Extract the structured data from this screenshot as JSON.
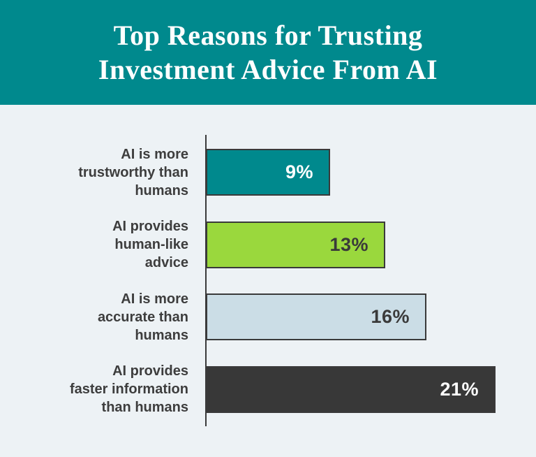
{
  "header": {
    "title_line1": "Top Reasons for Trusting",
    "title_line2": "Investment Advice From AI",
    "bg_color": "#00898D",
    "text_color": "#FFFFFF"
  },
  "chart_data": {
    "type": "bar",
    "orientation": "horizontal",
    "title": "Top Reasons for Trusting Investment Advice From AI",
    "xlabel": "",
    "ylabel": "",
    "unit": "%",
    "xlim": [
      0,
      24
    ],
    "grid": false,
    "legend": false,
    "categories": [
      "AI is more trustworthy than humans",
      "AI provides human-like advice",
      "AI is more accurate than humans",
      "AI provides faster information than humans"
    ],
    "values": [
      9,
      13,
      16,
      21
    ],
    "bars": [
      {
        "label_lines": "AI is more\ntrustworthy than\nhumans",
        "value": 9,
        "display_value": "9%",
        "bar_color": "#00898D",
        "value_color": "#FFFFFF"
      },
      {
        "label_lines": "AI provides\nhuman-like\nadvice",
        "value": 13,
        "display_value": "13%",
        "bar_color": "#9AD83D",
        "value_color": "#3A3A3A"
      },
      {
        "label_lines": "AI is more\naccurate than\nhumans",
        "value": 16,
        "display_value": "16%",
        "bar_color": "#CBDDE6",
        "value_color": "#3A3A3A"
      },
      {
        "label_lines": "AI provides\nfaster information\nthan humans",
        "value": 21,
        "display_value": "21%",
        "bar_color": "#383838",
        "value_color": "#FFFFFF"
      }
    ],
    "colors": {
      "background": "#EDF2F5",
      "axis": "#3A3A3A",
      "bar_border": "#3A3A3A",
      "label_text": "#3D3D3D",
      "header_teal": "#00898D"
    }
  }
}
